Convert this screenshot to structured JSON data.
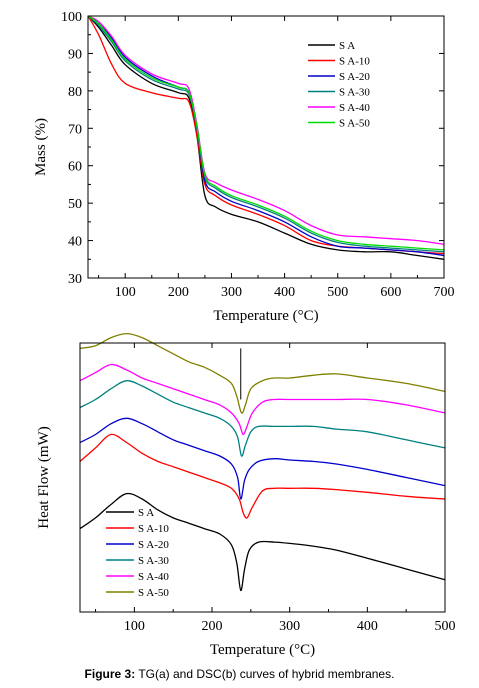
{
  "figure_caption": {
    "label": "Figure 3:",
    "text": "TG(a) and DSC(b) curves of hybrid membranes."
  },
  "chart_data": [
    {
      "type": "line",
      "title": "",
      "xlabel": "Temperature (°C)",
      "ylabel": "Mass (%)",
      "xlim": [
        30,
        700
      ],
      "ylim": [
        30,
        100
      ],
      "xticks": [
        100,
        200,
        300,
        400,
        500,
        600,
        700
      ],
      "yticks": [
        30,
        40,
        50,
        60,
        70,
        80,
        90,
        100
      ],
      "grid": false,
      "legend_position": "top-right",
      "series": [
        {
          "name": "S A",
          "color": "#000000",
          "x": [
            30,
            50,
            75,
            100,
            150,
            200,
            220,
            235,
            250,
            270,
            300,
            350,
            400,
            450,
            500,
            550,
            600,
            650,
            700
          ],
          "y": [
            100,
            97,
            92,
            87,
            82,
            79.5,
            78,
            68,
            52,
            49,
            47,
            45,
            42,
            39,
            37.5,
            37,
            37,
            36,
            35
          ]
        },
        {
          "name": "S A-10",
          "color": "#ff0000",
          "x": [
            30,
            50,
            75,
            100,
            150,
            200,
            220,
            235,
            250,
            270,
            300,
            350,
            400,
            450,
            500,
            550,
            600,
            650,
            700
          ],
          "y": [
            100,
            95,
            87,
            82,
            79.5,
            78,
            77,
            68,
            55,
            52,
            49.5,
            47,
            44,
            40,
            38.5,
            38,
            37.5,
            37,
            36.5
          ]
        },
        {
          "name": "S A-20",
          "color": "#0000cc",
          "x": [
            30,
            50,
            75,
            100,
            150,
            200,
            220,
            235,
            250,
            270,
            300,
            350,
            400,
            450,
            500,
            550,
            600,
            650,
            700
          ],
          "y": [
            100,
            98,
            94,
            89,
            84,
            81,
            79.5,
            70,
            56,
            53,
            50.5,
            48,
            45,
            41,
            38.5,
            38,
            37.5,
            37,
            36
          ]
        },
        {
          "name": "S A-30",
          "color": "#008080",
          "x": [
            30,
            50,
            75,
            100,
            150,
            200,
            220,
            235,
            250,
            270,
            300,
            350,
            400,
            450,
            500,
            550,
            600,
            650,
            700
          ],
          "y": [
            100,
            97.5,
            93,
            88,
            83,
            80.5,
            79,
            70,
            57,
            54,
            51.5,
            49,
            46,
            42,
            39.5,
            38.5,
            38,
            37.5,
            37
          ]
        },
        {
          "name": "S A-40",
          "color": "#ff00ff",
          "x": [
            30,
            50,
            75,
            100,
            150,
            200,
            220,
            235,
            250,
            270,
            300,
            350,
            400,
            450,
            500,
            550,
            600,
            650,
            700
          ],
          "y": [
            100,
            98.5,
            94.5,
            89.5,
            84.5,
            82,
            80.5,
            71,
            58,
            55.5,
            53.5,
            51,
            48,
            44,
            41.5,
            41,
            40.5,
            40,
            39
          ]
        },
        {
          "name": "S A-50",
          "color": "#00dd00",
          "x": [
            30,
            50,
            75,
            100,
            150,
            200,
            220,
            235,
            250,
            270,
            300,
            350,
            400,
            450,
            500,
            550,
            600,
            650,
            700
          ],
          "y": [
            100,
            98,
            93.5,
            88.5,
            83.5,
            81,
            79.5,
            70.5,
            57.5,
            54.5,
            52,
            49.5,
            46.5,
            42.5,
            40,
            39,
            38.5,
            38,
            37.5
          ]
        }
      ]
    },
    {
      "type": "line",
      "title": "",
      "xlabel": "Temperature (°C)",
      "ylabel": "Heat Flow (mW)",
      "xlim": [
        30,
        500
      ],
      "ylim": [
        0,
        1
      ],
      "xticks": [
        100,
        200,
        300,
        400,
        500
      ],
      "yticks": [],
      "grid": false,
      "legend_position": "bottom-left",
      "reference_line_x": 237,
      "series": [
        {
          "name": "S A",
          "color": "#000000",
          "x": [
            30,
            50,
            70,
            90,
            110,
            130,
            150,
            170,
            190,
            210,
            225,
            232,
            237,
            242,
            248,
            260,
            280,
            300,
            330,
            360,
            400,
            450,
            500
          ],
          "y": [
            0.31,
            0.35,
            0.4,
            0.44,
            0.42,
            0.38,
            0.35,
            0.33,
            0.31,
            0.29,
            0.25,
            0.18,
            0.08,
            0.16,
            0.23,
            0.26,
            0.26,
            0.255,
            0.245,
            0.23,
            0.2,
            0.16,
            0.12
          ]
        },
        {
          "name": "S A-10",
          "color": "#ff0000",
          "x": [
            30,
            50,
            70,
            90,
            110,
            130,
            150,
            170,
            190,
            210,
            225,
            235,
            240,
            245,
            252,
            265,
            280,
            300,
            330,
            360,
            400,
            450,
            500
          ],
          "y": [
            0.56,
            0.61,
            0.66,
            0.63,
            0.59,
            0.56,
            0.54,
            0.52,
            0.5,
            0.48,
            0.46,
            0.42,
            0.37,
            0.35,
            0.39,
            0.45,
            0.46,
            0.46,
            0.46,
            0.455,
            0.445,
            0.43,
            0.42
          ]
        },
        {
          "name": "S A-20",
          "color": "#0000cc",
          "x": [
            30,
            50,
            70,
            90,
            110,
            130,
            150,
            170,
            190,
            210,
            225,
            233,
            237,
            242,
            248,
            260,
            280,
            300,
            330,
            360,
            400,
            450,
            500
          ],
          "y": [
            0.63,
            0.66,
            0.7,
            0.72,
            0.7,
            0.67,
            0.64,
            0.62,
            0.6,
            0.58,
            0.55,
            0.5,
            0.42,
            0.49,
            0.53,
            0.56,
            0.57,
            0.565,
            0.56,
            0.55,
            0.53,
            0.5,
            0.47
          ]
        },
        {
          "name": "S A-30",
          "color": "#008080",
          "x": [
            30,
            50,
            70,
            90,
            110,
            130,
            150,
            170,
            190,
            210,
            225,
            233,
            238,
            243,
            250,
            260,
            280,
            300,
            330,
            360,
            400,
            450,
            500
          ],
          "y": [
            0.76,
            0.79,
            0.83,
            0.86,
            0.84,
            0.81,
            0.78,
            0.76,
            0.74,
            0.72,
            0.69,
            0.65,
            0.58,
            0.62,
            0.67,
            0.69,
            0.69,
            0.69,
            0.69,
            0.68,
            0.67,
            0.64,
            0.61
          ]
        },
        {
          "name": "S A-40",
          "color": "#ff00ff",
          "x": [
            30,
            50,
            70,
            90,
            110,
            130,
            150,
            170,
            190,
            210,
            225,
            235,
            240,
            245,
            252,
            265,
            280,
            300,
            330,
            360,
            400,
            450,
            500
          ],
          "y": [
            0.86,
            0.89,
            0.92,
            0.9,
            0.87,
            0.85,
            0.83,
            0.81,
            0.79,
            0.77,
            0.74,
            0.7,
            0.66,
            0.69,
            0.74,
            0.78,
            0.79,
            0.79,
            0.79,
            0.79,
            0.79,
            0.77,
            0.74
          ]
        },
        {
          "name": "S A-50",
          "color": "#808000",
          "x": [
            30,
            50,
            70,
            90,
            110,
            130,
            150,
            170,
            190,
            210,
            225,
            232,
            238,
            243,
            250,
            265,
            280,
            300,
            330,
            360,
            400,
            450,
            500
          ],
          "y": [
            0.98,
            0.99,
            1.02,
            1.035,
            1.02,
            0.99,
            0.96,
            0.93,
            0.91,
            0.88,
            0.85,
            0.8,
            0.74,
            0.77,
            0.83,
            0.86,
            0.87,
            0.87,
            0.88,
            0.885,
            0.87,
            0.85,
            0.82
          ]
        }
      ]
    }
  ]
}
